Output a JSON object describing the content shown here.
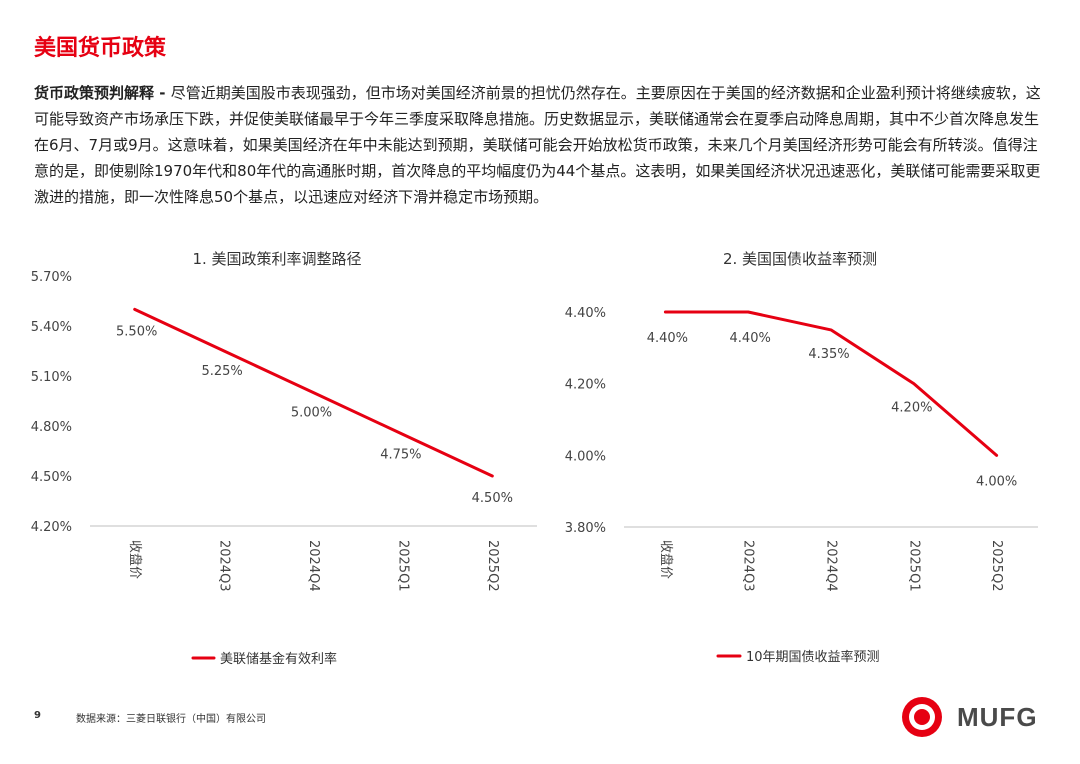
{
  "page_title": "美国货币政策",
  "paragraph": {
    "lead": "货币政策预判解释",
    "separator": " - ",
    "text": "尽管近期美国股市表现强劲，但市场对美国经济前景的担忧仍然存在。主要原因在于美国的经济数据和企业盈利预计将继续疲软，这可能导致资产市场承压下跌，并促使美联储最早于今年三季度采取降息措施。历史数据显示，美联储通常会在夏季启动降息周期，其中不少首次降息发生在6月、7月或9月。这意味着，如果美国经济在年中未能达到预期，美联储可能会开始放松货币政策，未来几个月美国经济形势可能会有所转淡。值得注意的是，即使剔除1970年代和80年代的高通胀时期，首次降息的平均幅度仍为44个基点。这表明，如果美国经济状况迅速恶化，美联储可能需要采取更激进的措施，即一次性降息50个基点，以迅速应对经济下滑并稳定市场预期。"
  },
  "chart_data": [
    {
      "type": "line",
      "title": "1. 美国政策利率调整路径",
      "categories": [
        "收盘价",
        "2024Q3",
        "2024Q4",
        "2025Q1",
        "2025Q2"
      ],
      "series": [
        {
          "name": "美联储基金有效利率",
          "values": [
            5.5,
            5.25,
            5.0,
            4.75,
            4.5
          ],
          "labels": [
            "5.50%",
            "5.25%",
            "5.00%",
            "4.75%",
            "4.50%"
          ],
          "color": "#e60012"
        }
      ],
      "ylim": [
        4.2,
        5.7
      ],
      "yticks": [
        5.7,
        5.4,
        5.1,
        4.8,
        4.5,
        4.2
      ],
      "ytick_labels": [
        "5.70%",
        "5.40%",
        "5.10%",
        "4.80%",
        "4.50%",
        "4.20%"
      ],
      "legend_position": "bottom",
      "grid": false
    },
    {
      "type": "line",
      "title": "2. 美国国债收益率预测",
      "categories": [
        "收盘价",
        "2024Q3",
        "2024Q4",
        "2025Q1",
        "2025Q2"
      ],
      "series": [
        {
          "name": "10年期国债收益率预测",
          "values": [
            4.4,
            4.4,
            4.35,
            4.2,
            4.0
          ],
          "labels": [
            "4.40%",
            "4.40%",
            "4.35%",
            "4.20%",
            "4.00%"
          ],
          "color": "#e60012"
        }
      ],
      "ylim": [
        3.8,
        4.4
      ],
      "yticks": [
        4.4,
        4.2,
        4.0,
        3.8
      ],
      "ytick_labels": [
        "4.40%",
        "4.20%",
        "4.00%",
        "3.80%"
      ],
      "legend_position": "bottom",
      "grid": false
    }
  ],
  "footer": {
    "page_number": "9",
    "source": "数据来源：三菱日联银行（中国）有限公司"
  },
  "logo": {
    "text": "MUFG",
    "color": "#e60012"
  }
}
